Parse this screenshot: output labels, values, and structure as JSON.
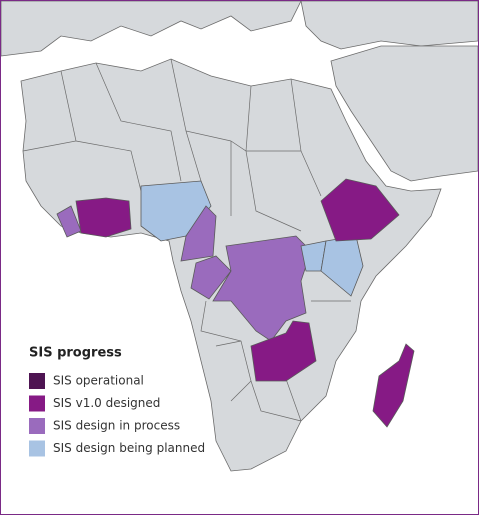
{
  "legend": {
    "title": "SIS progress",
    "items": [
      {
        "label": "SIS operational",
        "color": "#4e1452"
      },
      {
        "label": "SIS v1.0 designed",
        "color": "#861a85"
      },
      {
        "label": "SIS design in process",
        "color": "#9a6bbd"
      },
      {
        "label": "SIS design being planned",
        "color": "#a8c3e3"
      }
    ]
  }
}
